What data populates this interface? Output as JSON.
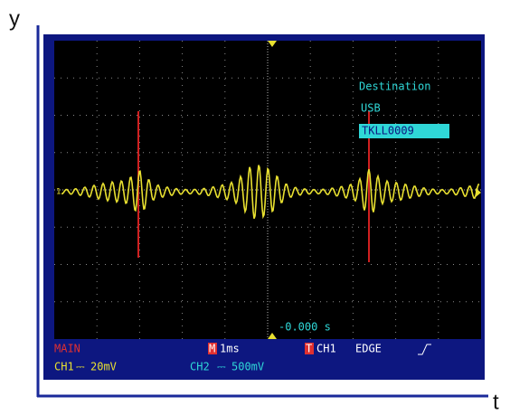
{
  "axes": {
    "y_label": "y",
    "x_label": "t"
  },
  "screen": {
    "channel_marker": "1",
    "destination": {
      "title": "Destination",
      "device": "USB",
      "file": "TKLL0009"
    },
    "trigger_time": "-0.000 s",
    "status": {
      "mode": "MAIN",
      "timebase_icon": "M",
      "timebase": "1ms",
      "trigger_icon": "T",
      "trigger_source": "CH1",
      "trigger_type": "EDGE"
    },
    "channels": [
      {
        "name": "CH1",
        "scale": "20mV"
      },
      {
        "name": "CH2",
        "scale": "500mV"
      }
    ]
  }
}
